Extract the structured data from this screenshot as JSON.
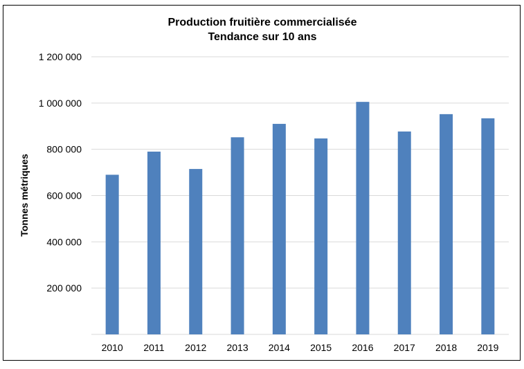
{
  "chart_data": {
    "type": "bar",
    "title": [
      "Production fruitière commercialisée",
      "Tendance sur 10 ans"
    ],
    "xlabel": "",
    "ylabel": "Tonnes métriques",
    "categories": [
      "2010",
      "2011",
      "2012",
      "2013",
      "2014",
      "2015",
      "2016",
      "2017",
      "2018",
      "2019"
    ],
    "values": [
      690000,
      790000,
      715000,
      852000,
      910000,
      847000,
      1005000,
      877000,
      952000,
      934000
    ],
    "ylim": [
      0,
      1200000
    ],
    "yticks": [
      200000,
      400000,
      600000,
      800000,
      1000000,
      1200000
    ],
    "ytick_labels": [
      "200 000",
      "400 000",
      "600 000",
      "800 000",
      "1 000 000",
      "1 200 000"
    ],
    "grid": true,
    "legend": false,
    "bar_color": "#4f81bd",
    "grid_color": "#d9d9d9"
  }
}
